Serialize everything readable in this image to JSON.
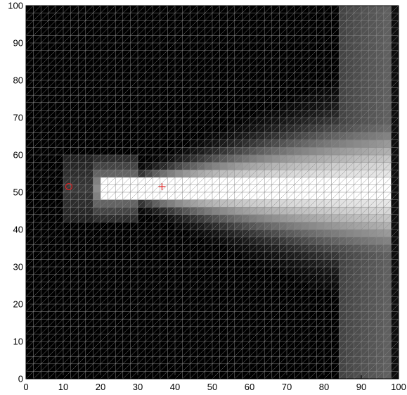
{
  "chart_data": {
    "type": "heatmap",
    "title": "",
    "xlabel": "",
    "ylabel": "",
    "xlim": [
      0,
      100
    ],
    "ylim": [
      0,
      100
    ],
    "x_ticks": [
      0,
      10,
      20,
      30,
      40,
      50,
      60,
      70,
      80,
      90,
      100
    ],
    "y_ticks": [
      0,
      10,
      20,
      30,
      40,
      50,
      60,
      70,
      80,
      90,
      100
    ],
    "grid": "triangulated mesh, 2-unit cells, drawn over image",
    "colormap": "grayscale (black = low, white = high)",
    "colors": {
      "mesh_line": "#8a8a8a",
      "marker": "#e02020",
      "frame": "#000000"
    },
    "markers": [
      {
        "name": "source",
        "symbol": "o",
        "x": 11.5,
        "y": 51.5
      },
      {
        "name": "receiver",
        "symbol": "+",
        "x": 36.5,
        "y": 51.5
      }
    ],
    "field_description": {
      "cells": "50 x 50 cells (2 units each)",
      "features": [
        {
          "region": "faint patch near source",
          "x": [
            10,
            20
          ],
          "y": [
            44,
            58
          ],
          "level": 0.25
        },
        {
          "region": "bright channel",
          "x": [
            20,
            98
          ],
          "y": [
            48,
            54
          ],
          "level": 1.0
        },
        {
          "region": "widening glow",
          "x": [
            30,
            98
          ],
          "y": [
            34,
            72
          ],
          "level": 0.6
        },
        {
          "region": "right-edge band",
          "x": [
            84,
            98
          ],
          "y": [
            0,
            100
          ],
          "level": 0.35
        }
      ]
    }
  }
}
